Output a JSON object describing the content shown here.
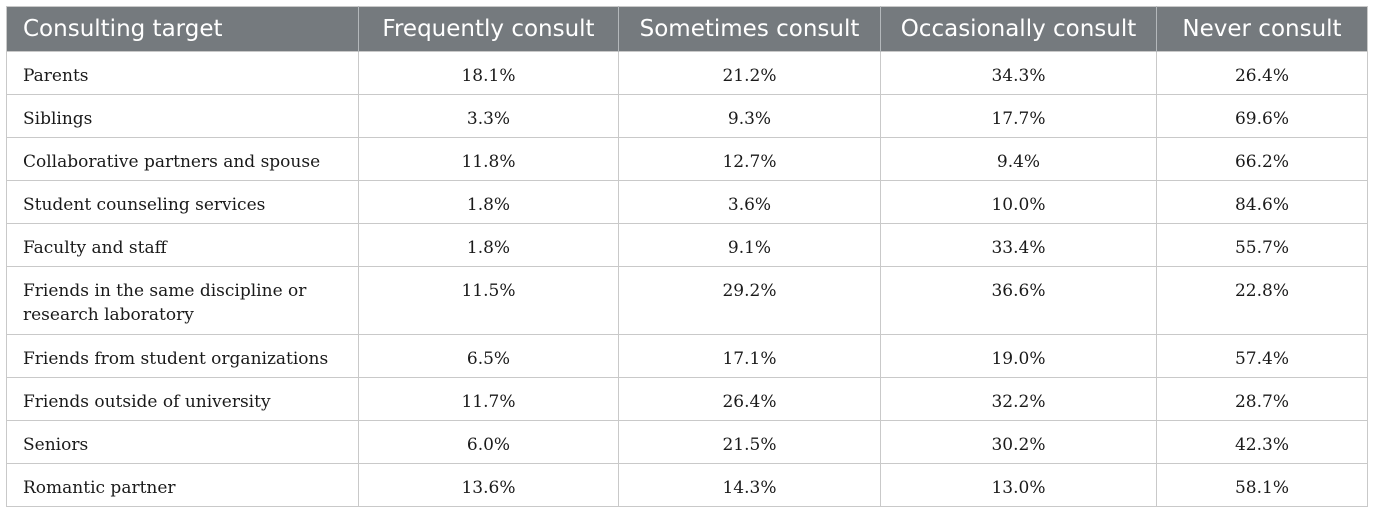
{
  "table": {
    "headers": [
      "Consulting target",
      "Frequently consult",
      "Sometimes consult",
      "Occasionally consult",
      "Never consult"
    ],
    "rows": [
      [
        "Parents",
        "18.1%",
        "21.2%",
        "34.3%",
        "26.4%"
      ],
      [
        "Siblings",
        "3.3%",
        "9.3%",
        "17.7%",
        "69.6%"
      ],
      [
        "Collaborative partners and spouse",
        "11.8%",
        "12.7%",
        "9.4%",
        "66.2%"
      ],
      [
        "Student counseling services",
        "1.8%",
        "3.6%",
        "10.0%",
        "84.6%"
      ],
      [
        "Faculty and staff",
        "1.8%",
        "9.1%",
        "33.4%",
        "55.7%"
      ],
      [
        "Friends in the same discipline or research laboratory",
        "11.5%",
        "29.2%",
        "36.6%",
        "22.8%"
      ],
      [
        "Friends from student organizations",
        "6.5%",
        "17.1%",
        "19.0%",
        "57.4%"
      ],
      [
        "Friends outside of university",
        "11.7%",
        "26.4%",
        "32.2%",
        "28.7%"
      ],
      [
        "Seniors",
        "6.0%",
        "21.5%",
        "30.2%",
        "42.3%"
      ],
      [
        "Romantic partner",
        "13.6%",
        "14.3%",
        "13.0%",
        "58.1%"
      ]
    ]
  },
  "colors": {
    "header_background": "#757a7e",
    "header_text": "#ffffff",
    "grid_line": "#c9c9c9"
  }
}
